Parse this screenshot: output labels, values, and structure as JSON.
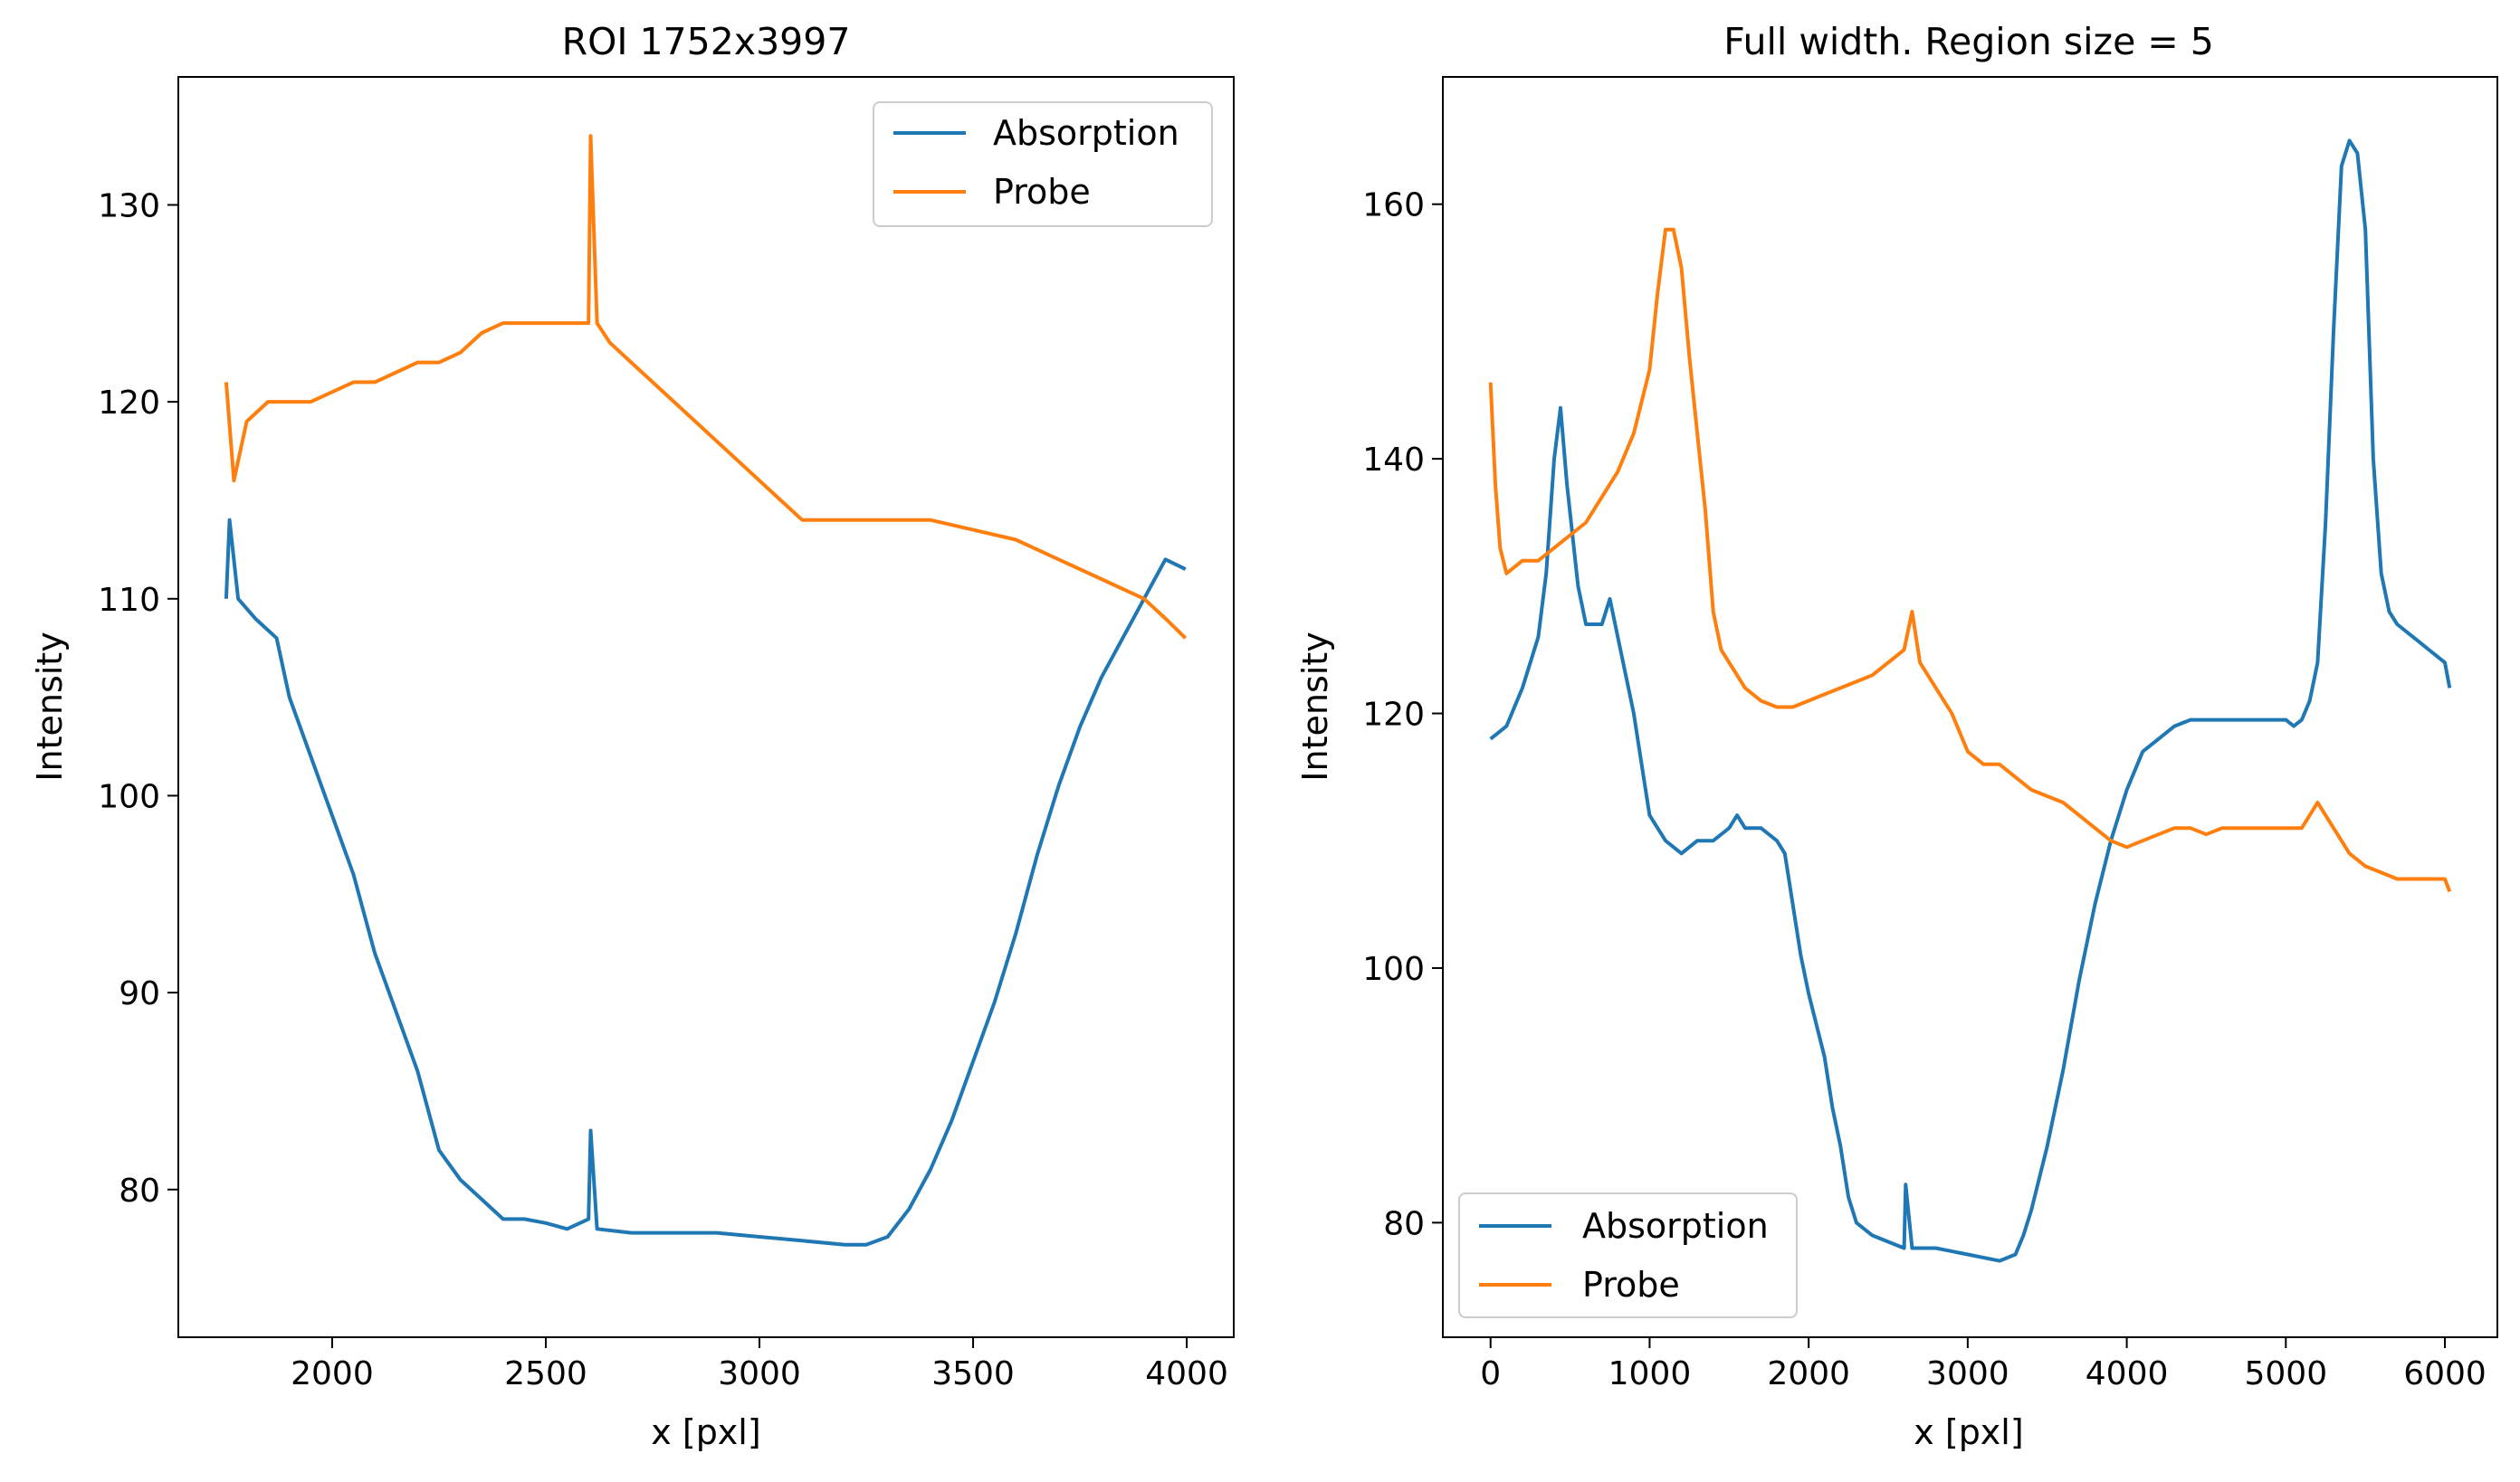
{
  "chart_data": [
    {
      "type": "line",
      "title": "ROI 1752x3997",
      "xlabel": "x [pxl]",
      "ylabel": "Intensity",
      "xlim": [
        1640,
        4110
      ],
      "ylim": [
        72.5,
        136.5
      ],
      "xticks": [
        2000,
        2500,
        3000,
        3500,
        4000
      ],
      "xtick_labels": [
        "2000",
        "2500",
        "3000",
        "3500",
        "4000"
      ],
      "yticks": [
        80,
        90,
        100,
        110,
        120,
        130
      ],
      "ytick_labels": [
        "80",
        "90",
        "100",
        "110",
        "120",
        "130"
      ],
      "grid": false,
      "legend": "top-right",
      "series": [
        {
          "name": "Absorption",
          "color": "#1f77b4",
          "points": [
            [
              1752,
              110
            ],
            [
              1760,
              114
            ],
            [
              1780,
              110
            ],
            [
              1820,
              109
            ],
            [
              1870,
              108
            ],
            [
              1900,
              105
            ],
            [
              1950,
              102
            ],
            [
              2000,
              99
            ],
            [
              2050,
              96
            ],
            [
              2100,
              92
            ],
            [
              2150,
              89
            ],
            [
              2200,
              86
            ],
            [
              2250,
              82
            ],
            [
              2300,
              80.5
            ],
            [
              2350,
              79.5
            ],
            [
              2400,
              78.5
            ],
            [
              2450,
              78.5
            ],
            [
              2500,
              78.3
            ],
            [
              2550,
              78
            ],
            [
              2600,
              78.5
            ],
            [
              2605,
              83
            ],
            [
              2620,
              78
            ],
            [
              2700,
              77.8
            ],
            [
              2800,
              77.8
            ],
            [
              2900,
              77.8
            ],
            [
              3000,
              77.6
            ],
            [
              3100,
              77.4
            ],
            [
              3200,
              77.2
            ],
            [
              3250,
              77.2
            ],
            [
              3300,
              77.6
            ],
            [
              3350,
              79
            ],
            [
              3400,
              81
            ],
            [
              3450,
              83.5
            ],
            [
              3500,
              86.5
            ],
            [
              3550,
              89.5
            ],
            [
              3600,
              93
            ],
            [
              3650,
              97
            ],
            [
              3700,
              100.5
            ],
            [
              3750,
              103.5
            ],
            [
              3800,
              106
            ],
            [
              3850,
              108
            ],
            [
              3900,
              110
            ],
            [
              3950,
              112
            ],
            [
              3997,
              111.5
            ]
          ]
        },
        {
          "name": "Probe",
          "color": "#ff7f0e",
          "points": [
            [
              1752,
              121
            ],
            [
              1770,
              116
            ],
            [
              1800,
              119
            ],
            [
              1850,
              120
            ],
            [
              1900,
              120
            ],
            [
              1950,
              120
            ],
            [
              2000,
              120.5
            ],
            [
              2050,
              121
            ],
            [
              2100,
              121
            ],
            [
              2150,
              121.5
            ],
            [
              2200,
              122
            ],
            [
              2250,
              122
            ],
            [
              2300,
              122.5
            ],
            [
              2350,
              123.5
            ],
            [
              2400,
              124
            ],
            [
              2450,
              124
            ],
            [
              2500,
              124
            ],
            [
              2550,
              124
            ],
            [
              2600,
              124
            ],
            [
              2605,
              133.5
            ],
            [
              2620,
              124
            ],
            [
              2650,
              123
            ],
            [
              2700,
              122
            ],
            [
              2750,
              121
            ],
            [
              2800,
              120
            ],
            [
              2850,
              119
            ],
            [
              2900,
              118
            ],
            [
              2950,
              117
            ],
            [
              3000,
              116
            ],
            [
              3050,
              115
            ],
            [
              3100,
              114
            ],
            [
              3150,
              114
            ],
            [
              3200,
              114
            ],
            [
              3300,
              114
            ],
            [
              3400,
              114
            ],
            [
              3500,
              113.5
            ],
            [
              3600,
              113
            ],
            [
              3700,
              112
            ],
            [
              3800,
              111
            ],
            [
              3900,
              110
            ],
            [
              3950,
              109
            ],
            [
              3997,
              108
            ]
          ]
        }
      ]
    },
    {
      "type": "line",
      "title": "Full width. Region size = 5",
      "xlabel": "x [pxl]",
      "ylabel": "Intensity",
      "xlim": [
        -300,
        6330
      ],
      "ylim": [
        71,
        170
      ],
      "xticks": [
        0,
        1000,
        2000,
        3000,
        4000,
        5000,
        6000
      ],
      "xtick_labels": [
        "0",
        "1000",
        "2000",
        "3000",
        "4000",
        "5000",
        "6000"
      ],
      "yticks": [
        80,
        100,
        120,
        140,
        160
      ],
      "ytick_labels": [
        "80",
        "100",
        "120",
        "140",
        "160"
      ],
      "grid": false,
      "legend": "bottom-left",
      "series": [
        {
          "name": "Absorption",
          "color": "#1f77b4",
          "points": [
            [
              0,
              118
            ],
            [
              100,
              119
            ],
            [
              200,
              122
            ],
            [
              300,
              126
            ],
            [
              350,
              131
            ],
            [
              400,
              140
            ],
            [
              440,
              144
            ],
            [
              480,
              138
            ],
            [
              550,
              130
            ],
            [
              600,
              127
            ],
            [
              700,
              127
            ],
            [
              750,
              129
            ],
            [
              800,
              126
            ],
            [
              850,
              123
            ],
            [
              900,
              120
            ],
            [
              950,
              116
            ],
            [
              1000,
              112
            ],
            [
              1100,
              110
            ],
            [
              1200,
              109
            ],
            [
              1300,
              110
            ],
            [
              1400,
              110
            ],
            [
              1500,
              111
            ],
            [
              1550,
              112
            ],
            [
              1600,
              111
            ],
            [
              1700,
              111
            ],
            [
              1800,
              110
            ],
            [
              1850,
              109
            ],
            [
              1900,
              105
            ],
            [
              1950,
              101
            ],
            [
              2000,
              98
            ],
            [
              2100,
              93
            ],
            [
              2150,
              89
            ],
            [
              2200,
              86
            ],
            [
              2250,
              82
            ],
            [
              2300,
              80
            ],
            [
              2400,
              79
            ],
            [
              2500,
              78.5
            ],
            [
              2600,
              78
            ],
            [
              2610,
              83
            ],
            [
              2650,
              78
            ],
            [
              2800,
              78
            ],
            [
              3000,
              77.5
            ],
            [
              3200,
              77
            ],
            [
              3300,
              77.5
            ],
            [
              3350,
              79
            ],
            [
              3400,
              81
            ],
            [
              3500,
              86
            ],
            [
              3600,
              92
            ],
            [
              3700,
              99
            ],
            [
              3800,
              105
            ],
            [
              3900,
              110
            ],
            [
              4000,
              114
            ],
            [
              4100,
              117
            ],
            [
              4200,
              118
            ],
            [
              4300,
              119
            ],
            [
              4400,
              119.5
            ],
            [
              4500,
              119.5
            ],
            [
              4600,
              119.5
            ],
            [
              4700,
              119.5
            ],
            [
              4800,
              119.5
            ],
            [
              4900,
              119.5
            ],
            [
              5000,
              119.5
            ],
            [
              5050,
              119
            ],
            [
              5100,
              119.5
            ],
            [
              5150,
              121
            ],
            [
              5200,
              124
            ],
            [
              5250,
              135
            ],
            [
              5300,
              150
            ],
            [
              5350,
              163
            ],
            [
              5400,
              165
            ],
            [
              5450,
              164
            ],
            [
              5500,
              158
            ],
            [
              5550,
              140
            ],
            [
              5600,
              131
            ],
            [
              5650,
              128
            ],
            [
              5700,
              127
            ],
            [
              5800,
              126
            ],
            [
              5900,
              125
            ],
            [
              6000,
              124
            ],
            [
              6030,
              122
            ]
          ]
        },
        {
          "name": "Probe",
          "color": "#ff7f0e",
          "points": [
            [
              0,
              146
            ],
            [
              30,
              138
            ],
            [
              60,
              133
            ],
            [
              100,
              131
            ],
            [
              200,
              132
            ],
            [
              300,
              132
            ],
            [
              400,
              133
            ],
            [
              500,
              134
            ],
            [
              600,
              135
            ],
            [
              700,
              137
            ],
            [
              800,
              139
            ],
            [
              900,
              142
            ],
            [
              1000,
              147
            ],
            [
              1050,
              153
            ],
            [
              1100,
              158
            ],
            [
              1150,
              158
            ],
            [
              1200,
              155
            ],
            [
              1250,
              148
            ],
            [
              1300,
              142
            ],
            [
              1350,
              136
            ],
            [
              1400,
              128
            ],
            [
              1450,
              125
            ],
            [
              1500,
              124
            ],
            [
              1550,
              123
            ],
            [
              1600,
              122
            ],
            [
              1700,
              121
            ],
            [
              1800,
              120.5
            ],
            [
              1900,
              120.5
            ],
            [
              2000,
              121
            ],
            [
              2100,
              121.5
            ],
            [
              2200,
              122
            ],
            [
              2300,
              122.5
            ],
            [
              2400,
              123
            ],
            [
              2500,
              124
            ],
            [
              2600,
              125
            ],
            [
              2650,
              128
            ],
            [
              2700,
              124
            ],
            [
              2800,
              122
            ],
            [
              2900,
              120
            ],
            [
              3000,
              117
            ],
            [
              3100,
              116
            ],
            [
              3200,
              116
            ],
            [
              3300,
              115
            ],
            [
              3400,
              114
            ],
            [
              3500,
              113.5
            ],
            [
              3600,
              113
            ],
            [
              3700,
              112
            ],
            [
              3800,
              111
            ],
            [
              3900,
              110
            ],
            [
              4000,
              109.5
            ],
            [
              4100,
              110
            ],
            [
              4200,
              110.5
            ],
            [
              4300,
              111
            ],
            [
              4400,
              111
            ],
            [
              4500,
              110.5
            ],
            [
              4600,
              111
            ],
            [
              4700,
              111
            ],
            [
              4800,
              111
            ],
            [
              4900,
              111
            ],
            [
              5000,
              111
            ],
            [
              5100,
              111
            ],
            [
              5200,
              113
            ],
            [
              5300,
              111
            ],
            [
              5400,
              109
            ],
            [
              5500,
              108
            ],
            [
              5600,
              107.5
            ],
            [
              5700,
              107
            ],
            [
              5800,
              107
            ],
            [
              5900,
              107
            ],
            [
              6000,
              107
            ],
            [
              6030,
              106
            ]
          ]
        }
      ]
    }
  ]
}
